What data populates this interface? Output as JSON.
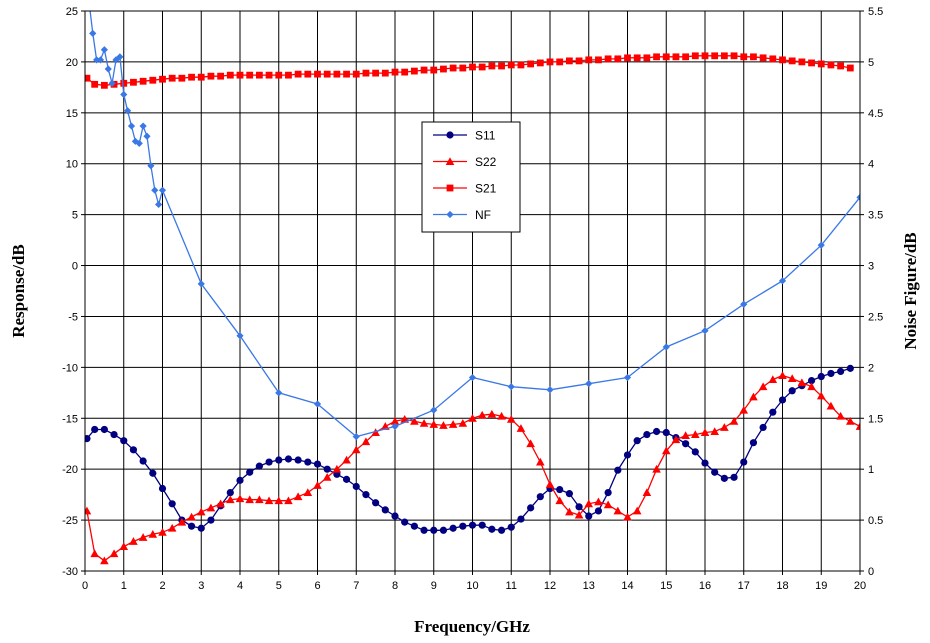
{
  "chart_data": {
    "type": "line",
    "title": "",
    "xlabel": "Frequency/GHz",
    "ylabel": "Response/dB",
    "y2label": "Noise Figure/dB",
    "xlim": [
      0,
      20
    ],
    "ylim": [
      -30,
      25
    ],
    "y2lim": [
      0,
      5.5
    ],
    "xticks": [
      "0",
      "1",
      "2",
      "3",
      "4",
      "5",
      "6",
      "7",
      "8",
      "9",
      "10",
      "11",
      "12",
      "13",
      "14",
      "15",
      "16",
      "17",
      "18",
      "19",
      "20"
    ],
    "yticks": [
      "-30",
      "-25",
      "-20",
      "-15",
      "-10",
      "-5",
      "0",
      "5",
      "10",
      "15",
      "20",
      "25"
    ],
    "y2ticks": [
      "0",
      "0.5",
      "1",
      "1.5",
      "2",
      "2.5",
      "3",
      "3.5",
      "4",
      "4.5",
      "5",
      "5.5"
    ],
    "grid": true,
    "legend_position": "center-top",
    "series": [
      {
        "name": "S11",
        "axis": "left",
        "color": "#000080",
        "marker": "circle",
        "x": [
          0.05,
          0.25,
          0.5,
          0.75,
          1.0,
          1.25,
          1.5,
          1.75,
          2.0,
          2.25,
          2.5,
          2.75,
          3.0,
          3.25,
          3.5,
          3.75,
          4.0,
          4.25,
          4.5,
          4.75,
          5.0,
          5.25,
          5.5,
          5.75,
          6.0,
          6.25,
          6.5,
          6.75,
          7.0,
          7.25,
          7.5,
          7.75,
          8.0,
          8.25,
          8.5,
          8.75,
          9.0,
          9.25,
          9.5,
          9.75,
          10.0,
          10.25,
          10.5,
          10.75,
          11.0,
          11.25,
          11.5,
          11.75,
          12.0,
          12.25,
          12.5,
          12.75,
          13.0,
          13.25,
          13.5,
          13.75,
          14.0,
          14.25,
          14.5,
          14.75,
          15.0,
          15.25,
          15.5,
          15.75,
          16.0,
          16.25,
          16.5,
          16.75,
          17.0,
          17.25,
          17.5,
          17.75,
          18.0,
          18.25,
          18.5,
          18.75,
          19.0,
          19.25,
          19.5,
          19.75
        ],
        "values": [
          -17.0,
          -16.1,
          -16.1,
          -16.6,
          -17.2,
          -18.1,
          -19.2,
          -20.4,
          -21.9,
          -23.4,
          -25.0,
          -25.6,
          -25.8,
          -25.0,
          -23.6,
          -22.3,
          -21.1,
          -20.3,
          -19.7,
          -19.3,
          -19.1,
          -19.0,
          -19.1,
          -19.3,
          -19.5,
          -20.0,
          -20.5,
          -21.0,
          -21.7,
          -22.5,
          -23.3,
          -24.0,
          -24.6,
          -25.2,
          -25.6,
          -26.0,
          -26.0,
          -26.0,
          -25.8,
          -25.6,
          -25.5,
          -25.5,
          -25.9,
          -26.0,
          -25.7,
          -24.9,
          -23.8,
          -22.7,
          -21.9,
          -22.0,
          -22.4,
          -23.7,
          -24.6,
          -24.1,
          -22.3,
          -20.1,
          -18.6,
          -17.2,
          -16.6,
          -16.3,
          -16.4,
          -16.9,
          -17.5,
          -18.3,
          -19.4,
          -20.3,
          -20.9,
          -20.8,
          -19.3,
          -17.4,
          -15.9,
          -14.4,
          -13.2,
          -12.3,
          -11.8,
          -11.3,
          -10.9,
          -10.6,
          -10.4,
          -10.1
        ]
      },
      {
        "name": "S22",
        "axis": "left",
        "color": "#ff0000",
        "marker": "triangle",
        "x": [
          0.05,
          0.25,
          0.5,
          0.75,
          1.0,
          1.25,
          1.5,
          1.75,
          2.0,
          2.25,
          2.5,
          2.75,
          3.0,
          3.25,
          3.5,
          3.75,
          4.0,
          4.25,
          4.5,
          4.75,
          5.0,
          5.25,
          5.5,
          5.75,
          6.0,
          6.25,
          6.5,
          6.75,
          7.0,
          7.25,
          7.5,
          7.75,
          8.0,
          8.25,
          8.5,
          8.75,
          9.0,
          9.25,
          9.5,
          9.75,
          10.0,
          10.25,
          10.5,
          10.75,
          11.0,
          11.25,
          11.5,
          11.75,
          12.0,
          12.25,
          12.5,
          12.75,
          13.0,
          13.25,
          13.5,
          13.75,
          14.0,
          14.25,
          14.5,
          14.75,
          15.0,
          15.25,
          15.5,
          15.75,
          16.0,
          16.25,
          16.5,
          16.75,
          17.0,
          17.25,
          17.5,
          17.75,
          18.0,
          18.25,
          18.5,
          18.75,
          19.0,
          19.25,
          19.5,
          19.75,
          20.0
        ],
        "values": [
          -24.1,
          -28.3,
          -29.0,
          -28.3,
          -27.6,
          -27.1,
          -26.7,
          -26.4,
          -26.2,
          -25.8,
          -25.2,
          -24.7,
          -24.2,
          -23.8,
          -23.4,
          -23.0,
          -22.9,
          -23.0,
          -23.0,
          -23.1,
          -23.1,
          -23.1,
          -22.7,
          -22.3,
          -21.6,
          -20.8,
          -20.0,
          -19.1,
          -18.1,
          -17.3,
          -16.4,
          -15.8,
          -15.3,
          -15.1,
          -15.3,
          -15.5,
          -15.6,
          -15.7,
          -15.6,
          -15.5,
          -15.0,
          -14.7,
          -14.6,
          -14.8,
          -15.1,
          -16.0,
          -17.5,
          -19.3,
          -21.5,
          -23.1,
          -24.2,
          -24.5,
          -23.4,
          -23.2,
          -23.5,
          -24.1,
          -24.7,
          -24.1,
          -22.3,
          -20.0,
          -18.2,
          -17.1,
          -16.7,
          -16.6,
          -16.4,
          -16.3,
          -15.9,
          -15.3,
          -14.2,
          -12.9,
          -11.9,
          -11.2,
          -10.8,
          -11.1,
          -11.5,
          -11.9,
          -12.8,
          -13.8,
          -14.8,
          -15.3,
          -15.8
        ]
      },
      {
        "name": "S21",
        "axis": "left",
        "color": "#ff0000",
        "marker": "square",
        "x": [
          0.05,
          0.25,
          0.5,
          0.75,
          1.0,
          1.25,
          1.5,
          1.75,
          2.0,
          2.25,
          2.5,
          2.75,
          3.0,
          3.25,
          3.5,
          3.75,
          4.0,
          4.25,
          4.5,
          4.75,
          5.0,
          5.25,
          5.5,
          5.75,
          6.0,
          6.25,
          6.5,
          6.75,
          7.0,
          7.25,
          7.5,
          7.75,
          8.0,
          8.25,
          8.5,
          8.75,
          9.0,
          9.25,
          9.5,
          9.75,
          10.0,
          10.25,
          10.5,
          10.75,
          11.0,
          11.25,
          11.5,
          11.75,
          12.0,
          12.25,
          12.5,
          12.75,
          13.0,
          13.25,
          13.5,
          13.75,
          14.0,
          14.25,
          14.5,
          14.75,
          15.0,
          15.25,
          15.5,
          15.75,
          16.0,
          16.25,
          16.5,
          16.75,
          17.0,
          17.25,
          17.5,
          17.75,
          18.0,
          18.25,
          18.5,
          18.75,
          19.0,
          19.25,
          19.5,
          19.75
        ],
        "values": [
          18.4,
          17.8,
          17.7,
          17.8,
          17.9,
          18.0,
          18.1,
          18.2,
          18.3,
          18.4,
          18.4,
          18.5,
          18.5,
          18.6,
          18.6,
          18.7,
          18.7,
          18.7,
          18.7,
          18.7,
          18.7,
          18.7,
          18.8,
          18.8,
          18.8,
          18.8,
          18.8,
          18.8,
          18.8,
          18.9,
          18.9,
          18.9,
          19.0,
          19.0,
          19.1,
          19.2,
          19.2,
          19.3,
          19.4,
          19.4,
          19.5,
          19.5,
          19.6,
          19.6,
          19.7,
          19.7,
          19.8,
          19.9,
          20.0,
          20.0,
          20.1,
          20.1,
          20.2,
          20.2,
          20.3,
          20.3,
          20.4,
          20.4,
          20.4,
          20.5,
          20.5,
          20.5,
          20.5,
          20.6,
          20.6,
          20.6,
          20.6,
          20.6,
          20.5,
          20.5,
          20.4,
          20.3,
          20.2,
          20.1,
          20.0,
          19.9,
          19.8,
          19.7,
          19.6,
          19.4
        ]
      },
      {
        "name": "NF",
        "axis": "right",
        "color": "#3a78e6",
        "marker": "diamond",
        "x": [
          0.1,
          0.2,
          0.3,
          0.4,
          0.5,
          0.6,
          0.7,
          0.8,
          0.9,
          1.0,
          1.1,
          1.2,
          1.3,
          1.4,
          1.5,
          1.6,
          1.7,
          1.8,
          1.9,
          2.0,
          3.0,
          4.0,
          5.0,
          6.0,
          7.0,
          8.0,
          9.0,
          10.0,
          11.0,
          12.0,
          13.0,
          14.0,
          15.0,
          16.0,
          17.0,
          18.0,
          19.0,
          20.0
        ],
        "values": [
          5.6,
          5.28,
          5.02,
          5.02,
          5.12,
          4.93,
          4.79,
          5.02,
          5.05,
          4.68,
          4.52,
          4.37,
          4.22,
          4.2,
          4.37,
          4.27,
          3.98,
          3.74,
          3.6,
          3.74,
          2.82,
          2.31,
          1.75,
          1.64,
          1.32,
          1.42,
          1.58,
          1.9,
          1.81,
          1.78,
          1.84,
          1.9,
          2.2,
          2.36,
          2.62,
          2.85,
          3.2,
          3.67
        ]
      }
    ]
  }
}
